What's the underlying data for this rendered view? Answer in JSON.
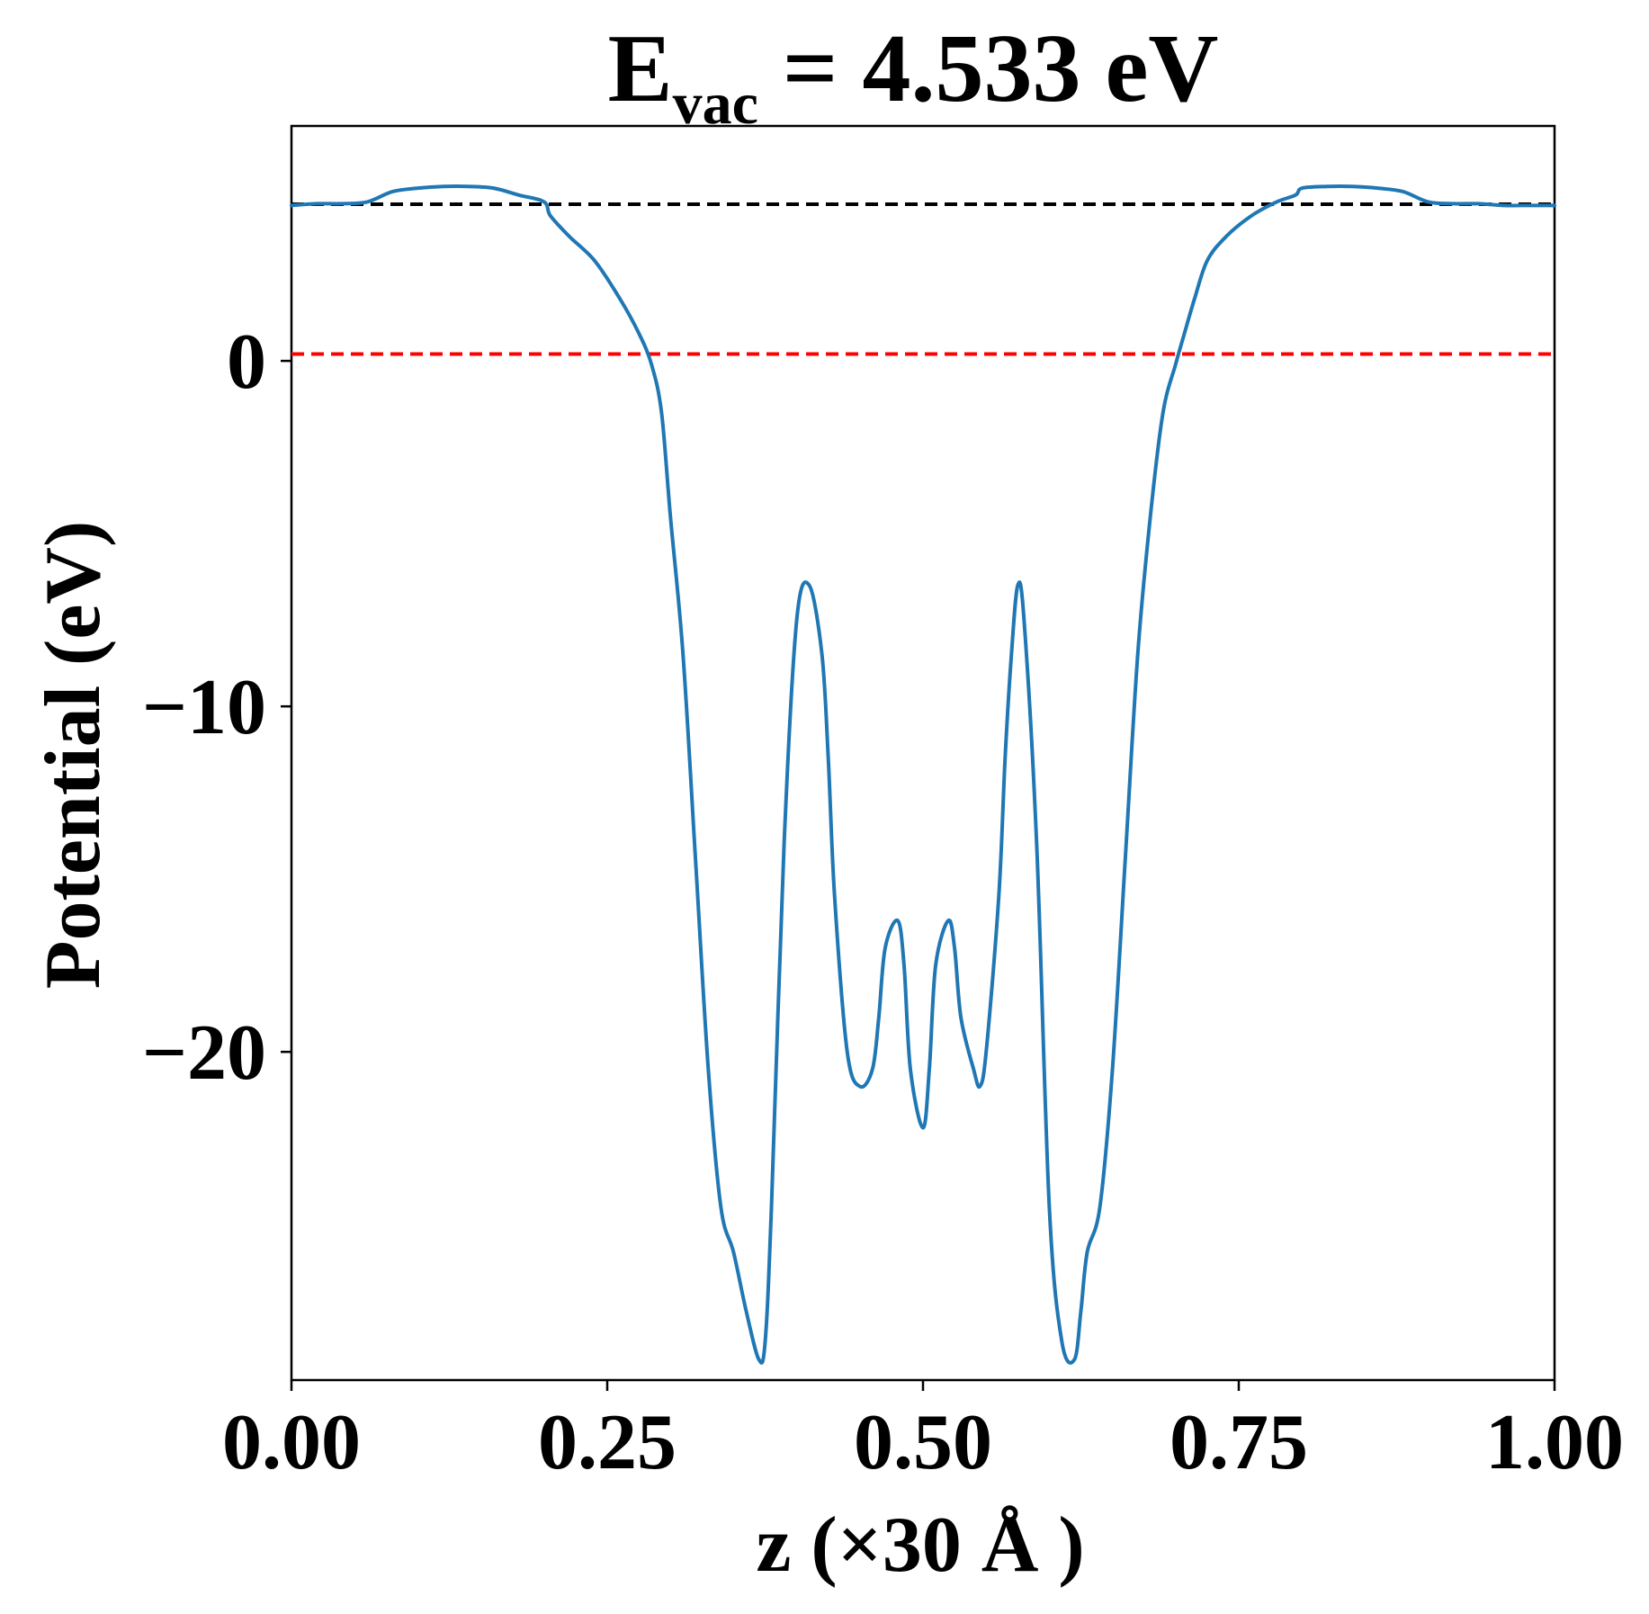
{
  "chart_data": {
    "type": "line",
    "title": {
      "main": "E",
      "sub": "vac",
      "rest": " = 4.533 eV"
    },
    "xlabel": "z (×30 Å )",
    "ylabel": "Potential (eV)",
    "xlim": [
      0,
      1
    ],
    "ylim": [
      -29.5,
      6.8
    ],
    "xticks": [
      0,
      0.25,
      0.5,
      0.75,
      1.0
    ],
    "xtick_labels": [
      "0.00",
      "0.25",
      "0.50",
      "0.75",
      "1.00"
    ],
    "yticks": [
      0,
      -10,
      -20
    ],
    "ytick_labels": [
      "0",
      "−10",
      "−20"
    ],
    "hlines": [
      {
        "y": 4.533,
        "color": "#000000",
        "style": "dashed"
      },
      {
        "y": 0.2,
        "color": "#ff0000",
        "style": "dashed"
      }
    ],
    "grid": false,
    "series": [
      {
        "color": "#1f77b4",
        "x": [
          0.0,
          0.02,
          0.04,
          0.06,
          0.08,
          0.1,
          0.12,
          0.14,
          0.16,
          0.18,
          0.2,
          0.205,
          0.22,
          0.24,
          0.26,
          0.275,
          0.285,
          0.293,
          0.3,
          0.31,
          0.32,
          0.33,
          0.34,
          0.35,
          0.36,
          0.37,
          0.375,
          0.38,
          0.39,
          0.4,
          0.41,
          0.42,
          0.425,
          0.43,
          0.44,
          0.45,
          0.46,
          0.465,
          0.47,
          0.48,
          0.485,
          0.49,
          0.5,
          0.505,
          0.51,
          0.52,
          0.525,
          0.53,
          0.54,
          0.545,
          0.55,
          0.56,
          0.565,
          0.57,
          0.575,
          0.58,
          0.59,
          0.6,
          0.61,
          0.62,
          0.625,
          0.63,
          0.64,
          0.65,
          0.66,
          0.67,
          0.68,
          0.69,
          0.7,
          0.707,
          0.715,
          0.725,
          0.74,
          0.76,
          0.78,
          0.795,
          0.8,
          0.82,
          0.84,
          0.86,
          0.88,
          0.9,
          0.92,
          0.94,
          0.96,
          0.98,
          1.0
        ],
        "y": [
          4.5,
          4.55,
          4.55,
          4.6,
          4.9,
          5.0,
          5.05,
          5.05,
          5.0,
          4.8,
          4.6,
          4.2,
          3.6,
          2.9,
          1.8,
          0.8,
          -0.1,
          -1.5,
          -4.5,
          -8.5,
          -14.5,
          -20.5,
          -24.5,
          -25.8,
          -27.5,
          -28.9,
          -28.4,
          -24.5,
          -14.0,
          -7.5,
          -6.5,
          -8.5,
          -11.5,
          -15.5,
          -20.0,
          -21.0,
          -20.5,
          -19.0,
          -17.0,
          -16.2,
          -17.5,
          -20.5,
          -22.2,
          -20.5,
          -17.5,
          -16.2,
          -17.0,
          -19.0,
          -20.5,
          -21.0,
          -20.0,
          -15.5,
          -11.5,
          -8.5,
          -6.5,
          -7.5,
          -14.0,
          -24.5,
          -28.4,
          -28.9,
          -27.5,
          -25.8,
          -24.5,
          -20.5,
          -14.5,
          -8.5,
          -4.5,
          -1.5,
          -0.1,
          0.8,
          1.8,
          2.9,
          3.6,
          4.2,
          4.6,
          4.8,
          5.0,
          5.05,
          5.05,
          5.0,
          4.9,
          4.6,
          4.55,
          4.55,
          4.5,
          4.5,
          4.5
        ]
      }
    ]
  }
}
